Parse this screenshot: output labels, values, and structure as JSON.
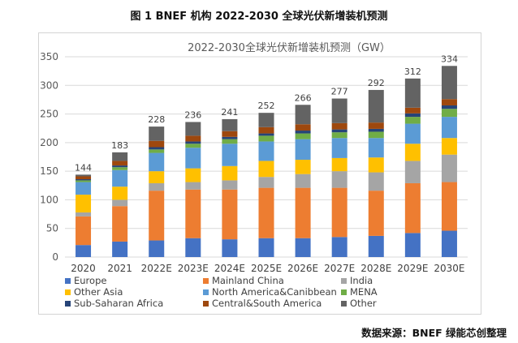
{
  "figure_title": "图 1 BNEF 机构 2022-2030 全球光伏新增装机预测",
  "source_note": "数据来源：BNEF  绿能芯创整理",
  "chart_data": {
    "type": "bar",
    "stacked": true,
    "title": "2022-2030全球光伏新增装机预测（GW）",
    "xlabel": "",
    "ylabel": "",
    "ylim": [
      0,
      350
    ],
    "yticks": [
      0,
      50,
      100,
      150,
      200,
      250,
      300,
      350
    ],
    "grid": true,
    "legend_position": "bottom",
    "categories": [
      "2020",
      "2021",
      "2022E",
      "2023E",
      "2024E",
      "2025E",
      "2026E",
      "2027E",
      "2028E",
      "2029E",
      "2030E"
    ],
    "totals": [
      144,
      183,
      228,
      236,
      241,
      252,
      266,
      277,
      292,
      312,
      334
    ],
    "series": [
      {
        "name": "Europe",
        "color": "#4472C4",
        "values": [
          21,
          27,
          29,
          33,
          31,
          33,
          33,
          35,
          37,
          42,
          46
        ]
      },
      {
        "name": "Mainland China",
        "color": "#ED7D31",
        "values": [
          50,
          62,
          87,
          85,
          87,
          88,
          88,
          86,
          79,
          87,
          85
        ]
      },
      {
        "name": "India",
        "color": "#A5A5A5",
        "values": [
          7,
          11,
          13,
          13,
          16,
          19,
          24,
          29,
          32,
          39,
          48
        ]
      },
      {
        "name": "Other Asia",
        "color": "#FFC000",
        "values": [
          31,
          23,
          21,
          24,
          25,
          28,
          25,
          23,
          26,
          30,
          29
        ]
      },
      {
        "name": "North America&Canibbean",
        "color": "#5B9BD5",
        "values": [
          22,
          29,
          32,
          36,
          39,
          34,
          36,
          35,
          34,
          35,
          37
        ]
      },
      {
        "name": "MENA",
        "color": "#70AD47",
        "values": [
          3,
          5,
          6,
          7,
          8,
          10,
          10,
          10,
          11,
          12,
          14
        ]
      },
      {
        "name": "Sub-Saharan Africa",
        "color": "#264478",
        "values": [
          2,
          3,
          4,
          4,
          4,
          4,
          5,
          5,
          5,
          6,
          6
        ]
      },
      {
        "name": "Central&South America",
        "color": "#9E480E",
        "values": [
          5,
          8,
          11,
          10,
          10,
          11,
          11,
          11,
          11,
          10,
          11
        ]
      },
      {
        "name": "Other",
        "color": "#636363",
        "values": [
          3,
          15,
          25,
          24,
          21,
          25,
          34,
          43,
          57,
          51,
          58
        ]
      }
    ]
  }
}
